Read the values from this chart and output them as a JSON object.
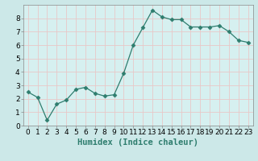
{
  "x": [
    0,
    1,
    2,
    3,
    4,
    5,
    6,
    7,
    8,
    9,
    10,
    11,
    12,
    13,
    14,
    15,
    16,
    17,
    18,
    19,
    20,
    21,
    22,
    23
  ],
  "y": [
    2.5,
    2.1,
    0.4,
    1.6,
    1.9,
    2.7,
    2.85,
    2.4,
    2.2,
    2.3,
    3.9,
    6.0,
    7.3,
    8.6,
    8.1,
    7.9,
    7.9,
    7.35,
    7.35,
    7.35,
    7.45,
    7.0,
    6.35,
    6.2
  ],
  "line_color": "#2e7d6e",
  "marker": "D",
  "marker_size": 2.5,
  "bg_color": "#cce8e8",
  "plot_bg_color": "#d6f0f0",
  "grid_color": "#e8c8c8",
  "xlabel": "Humidex (Indice chaleur)",
  "ylim": [
    0,
    9
  ],
  "xlim": [
    -0.5,
    23.5
  ],
  "yticks": [
    0,
    1,
    2,
    3,
    4,
    5,
    6,
    7,
    8
  ],
  "xticks": [
    0,
    1,
    2,
    3,
    4,
    5,
    6,
    7,
    8,
    9,
    10,
    11,
    12,
    13,
    14,
    15,
    16,
    17,
    18,
    19,
    20,
    21,
    22,
    23
  ],
  "xlabel_fontsize": 7.5,
  "tick_fontsize": 6.5
}
